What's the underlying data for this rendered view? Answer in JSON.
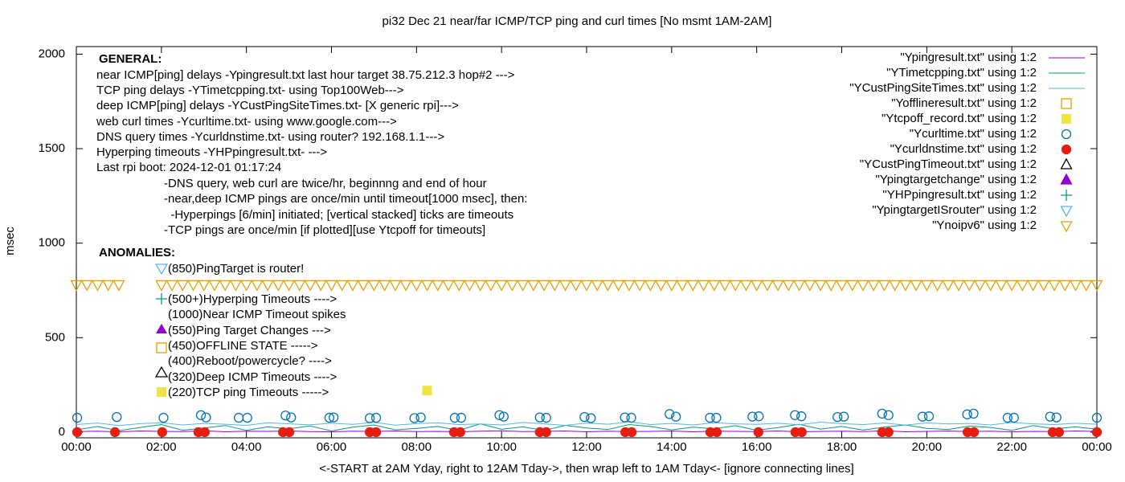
{
  "chart_data": {
    "type": "scatter",
    "title": "pi32 Dec 21  near/far ICMP/TCP ping and curl times [No msmt 1AM-2AM]",
    "xlabel": "<-START at 2AM Yday, right to 12AM Tday->, then wrap left to 1AM Tday<- [ignore connecting lines]",
    "ylabel": "msec",
    "xlim": [
      0,
      24
    ],
    "xticks": [
      {
        "value": 0,
        "label": "00:00"
      },
      {
        "value": 2,
        "label": "02:00"
      },
      {
        "value": 4,
        "label": "04:00"
      },
      {
        "value": 6,
        "label": "06:00"
      },
      {
        "value": 8,
        "label": "08:00"
      },
      {
        "value": 10,
        "label": "10:00"
      },
      {
        "value": 12,
        "label": "12:00"
      },
      {
        "value": 14,
        "label": "14:00"
      },
      {
        "value": 16,
        "label": "16:00"
      },
      {
        "value": 18,
        "label": "18:00"
      },
      {
        "value": 20,
        "label": "20:00"
      },
      {
        "value": 22,
        "label": "22:00"
      },
      {
        "value": 24,
        "label": "00:00"
      }
    ],
    "ylim": [
      -30,
      2040
    ],
    "yticks": [
      0,
      500,
      1000,
      1500,
      2000
    ],
    "grid": false,
    "legend": "top-right",
    "annotations": [
      "GENERAL:",
      "near ICMP[ping] delays -Ypingresult.txt last hour target 38.75.212.3 hop#2 --->",
      "TCP ping delays -YTimetcpping.txt- using Top100Web--->",
      "deep ICMP[ping] delays -YCustPingSiteTimes.txt- [X generic rpi]--->",
      "web curl times -Ycurltime.txt- using www.google.com--->",
      "DNS query times -Ycurldnstime.txt- using router? 192.168.1.1--->",
      "Hyperping timeouts -YHPpingresult.txt- --->",
      "Last rpi boot: 2024-12-01 01:17:24",
      "-DNS query, web curl are twice/hr, beginnng and end of hour",
      "-near,deep ICMP pings are once/min until timeout[1000 msec], then:",
      "  -Hyperpings [6/min] initiated; [vertical stacked] ticks are timeouts",
      "-TCP pings are once/min [if plotted][use Ytcpoff for timeouts]",
      "ANOMALIES:",
      "(850)PingTarget is router!",
      "(500+)Hyperping Timeouts ---->",
      "(1000)Near ICMP Timeout spikes",
      "(550)Ping Target Changes --->",
      "(450)OFFLINE STATE ----->",
      "(400)Reboot/powercycle? ---->",
      "(320)Deep ICMP Timeouts ---->",
      "(220)TCP ping Timeouts ----->"
    ],
    "series": [
      {
        "name": "\"Ypingresult.txt\" using 1:2",
        "color": "#9400d3",
        "marker": "line",
        "x": [
          0,
          0.5,
          1,
          1.5,
          2,
          2.5,
          3,
          3.5,
          4,
          4.5,
          5,
          5.5,
          6,
          6.5,
          7,
          7.5,
          8,
          8.5,
          9,
          9.5,
          10,
          10.5,
          11,
          11.5,
          12,
          12.5,
          13,
          13.5,
          14,
          14.5,
          15,
          15.5,
          16,
          16.5,
          17,
          17.5,
          18,
          18.5,
          19,
          19.5,
          20,
          20.5,
          21,
          21.5,
          22,
          22.5,
          23,
          23.5,
          24
        ],
        "values": [
          3,
          5,
          2,
          6,
          4,
          3,
          7,
          2,
          5,
          4,
          6,
          3,
          2,
          5,
          4,
          6,
          3,
          4,
          2,
          5,
          7,
          3,
          4,
          6,
          2,
          5,
          3,
          4,
          6,
          2,
          5,
          4,
          3,
          6,
          2,
          4,
          5,
          3,
          7,
          2,
          4,
          6,
          3,
          5,
          2,
          4,
          3,
          6,
          4
        ]
      },
      {
        "name": "\"YTimetcpping.txt\" using 1:2",
        "color": "#009e73",
        "marker": "line",
        "x": [
          0,
          0.5,
          1,
          1.5,
          2,
          2.5,
          3,
          3.5,
          4,
          4.5,
          5,
          5.5,
          6,
          6.5,
          7,
          7.5,
          8,
          8.5,
          9,
          9.5,
          10,
          10.5,
          11,
          11.5,
          12,
          12.5,
          13,
          13.5,
          14,
          14.5,
          15,
          15.5,
          16,
          16.5,
          17,
          17.5,
          18,
          18.5,
          19,
          19.5,
          20,
          20.5,
          21,
          21.5,
          22,
          22.5,
          23,
          23.5,
          24
        ],
        "values": [
          12,
          30,
          8,
          25,
          40,
          10,
          22,
          35,
          9,
          28,
          18,
          33,
          6,
          26,
          38,
          12,
          20,
          30,
          10,
          44,
          15,
          28,
          9,
          36,
          22,
          14,
          40,
          30,
          12,
          26,
          18,
          34,
          10,
          24,
          42,
          16,
          30,
          11,
          27,
          38,
          20,
          14,
          32,
          25,
          9,
          35,
          18,
          28,
          15
        ]
      },
      {
        "name": "\"YCustPingSiteTimes.txt\" using 1:2",
        "color": "#56b4e9",
        "marker": "line",
        "x": [
          0,
          0.5,
          1,
          1.5,
          2,
          2.5,
          3,
          3.5,
          4,
          4.5,
          5,
          5.5,
          6,
          6.5,
          7,
          7.5,
          8,
          8.5,
          9,
          9.5,
          10,
          10.5,
          11,
          11.5,
          12,
          12.5,
          13,
          13.5,
          14,
          14.5,
          15,
          15.5,
          16,
          16.5,
          17,
          17.5,
          18,
          18.5,
          19,
          19.5,
          20,
          20.5,
          21,
          21.5,
          22,
          22.5,
          23,
          23.5,
          24
        ],
        "values": [
          40,
          48,
          35,
          45,
          50,
          38,
          46,
          42,
          36,
          50,
          44,
          39,
          47,
          41,
          52,
          37,
          45,
          49,
          40,
          43,
          38,
          51,
          44,
          36,
          48,
          42,
          55,
          40,
          46,
          38,
          50,
          44,
          41,
          47,
          39,
          53,
          45,
          40,
          48,
          37,
          49,
          43,
          46,
          38,
          51,
          44,
          40,
          47,
          42
        ]
      },
      {
        "name": "\"Yofflineresult.txt\" using 1:2",
        "color": "#e69f00",
        "marker": "square-open",
        "x": [],
        "values": []
      },
      {
        "name": "\"Ytcpoff_record.txt\" using 1:2",
        "color": "#f0e442",
        "marker": "square",
        "x": [
          8.25
        ],
        "values": [
          220
        ]
      },
      {
        "name": "\"Ycurltime.txt\" using 1:2",
        "color": "#0072b2",
        "marker": "circle-open",
        "x": [
          0.02,
          0.95,
          2.05,
          2.93,
          3.05,
          3.82,
          4.02,
          4.92,
          5.05,
          5.95,
          6.05,
          6.9,
          7.05,
          7.95,
          8.1,
          8.9,
          9.05,
          9.95,
          10.05,
          10.9,
          11.05,
          11.95,
          12.1,
          12.9,
          13.05,
          13.95,
          14.1,
          14.9,
          15.05,
          15.9,
          16.05,
          16.9,
          17.05,
          17.9,
          18.05,
          18.95,
          19.1,
          19.9,
          20.05,
          20.95,
          21.1,
          21.9,
          22.05,
          22.9,
          23.05,
          24
        ],
        "values": [
          76,
          80,
          76,
          90,
          78,
          76,
          76,
          88,
          78,
          76,
          78,
          74,
          76,
          74,
          78,
          76,
          76,
          90,
          82,
          78,
          76,
          80,
          74,
          78,
          76,
          96,
          82,
          76,
          76,
          82,
          84,
          90,
          84,
          80,
          82,
          98,
          90,
          82,
          84,
          94,
          98,
          76,
          76,
          82,
          78,
          76
        ]
      },
      {
        "name": "\"Ycurldnstime.txt\" using 1:2",
        "color": "#e51e10",
        "marker": "circle",
        "x": [
          0.02,
          0.91,
          2.02,
          2.87,
          3.02,
          4.86,
          5.01,
          6.9,
          7.05,
          8.88,
          9.03,
          10.9,
          11.05,
          12.91,
          13.06,
          14.91,
          15.06,
          16.04,
          16.91,
          17.06,
          18.95,
          19.1,
          20.96,
          21.11,
          22.96,
          23.11,
          24
        ],
        "values": [
          0,
          0,
          0,
          0,
          0,
          0,
          0,
          0,
          0,
          0,
          0,
          0,
          0,
          0,
          0,
          0,
          0,
          0,
          0,
          0,
          0,
          0,
          0,
          0,
          0,
          0,
          0
        ]
      },
      {
        "name": "\"YCustPingTimeout.txt\" using 1:2",
        "color": "#000000",
        "marker": "triangle-open",
        "x": [],
        "values": []
      },
      {
        "name": "\"Ypingtargetchange\" using 1:2",
        "color": "#9400d3",
        "marker": "triangle",
        "x": [],
        "values": []
      },
      {
        "name": "\"YHPpingresult.txt\" using 1:2",
        "color": "#009e73",
        "marker": "plus",
        "x": [],
        "values": []
      },
      {
        "name": "\"YpingtargetISrouter\" using 1:2",
        "color": "#56b4e9",
        "marker": "triangle-down-open",
        "x": [],
        "values": []
      },
      {
        "name": "\"Ynoipv6\" using 1:2",
        "color": "#e69f00",
        "marker": "triangle-down-open",
        "x": [
          0,
          0.25,
          0.5,
          0.75,
          1,
          2,
          2.25,
          2.5,
          2.75,
          3,
          3.25,
          3.5,
          3.75,
          4,
          4.25,
          4.5,
          4.75,
          5,
          5.25,
          5.5,
          5.75,
          6,
          6.25,
          6.5,
          6.75,
          7,
          7.25,
          7.5,
          7.75,
          8,
          8.25,
          8.5,
          8.75,
          9,
          9.25,
          9.5,
          9.75,
          10,
          10.25,
          10.5,
          10.75,
          11,
          11.25,
          11.5,
          11.75,
          12,
          12.25,
          12.5,
          12.75,
          13,
          13.25,
          13.5,
          13.75,
          14,
          14.25,
          14.5,
          14.75,
          15,
          15.25,
          15.5,
          15.75,
          16,
          16.25,
          16.5,
          16.75,
          17,
          17.25,
          17.5,
          17.75,
          18,
          18.25,
          18.5,
          18.75,
          19,
          19.25,
          19.5,
          19.75,
          20,
          20.25,
          20.5,
          20.75,
          21,
          21.25,
          21.5,
          21.75,
          22,
          22.25,
          22.5,
          22.75,
          23,
          23.25,
          23.5,
          23.75,
          24
        ],
        "values": [
          780,
          780,
          780,
          780,
          780,
          780,
          780,
          780,
          780,
          780,
          780,
          780,
          780,
          780,
          780,
          780,
          780,
          780,
          780,
          780,
          780,
          780,
          780,
          780,
          780,
          780,
          780,
          780,
          780,
          780,
          780,
          780,
          780,
          780,
          780,
          780,
          780,
          780,
          780,
          780,
          780,
          780,
          780,
          780,
          780,
          780,
          780,
          780,
          780,
          780,
          780,
          780,
          780,
          780,
          780,
          780,
          780,
          780,
          780,
          780,
          780,
          780,
          780,
          780,
          780,
          780,
          780,
          780,
          780,
          780,
          780,
          780,
          780,
          780,
          780,
          780,
          780,
          780,
          780,
          780,
          780,
          780,
          780,
          780,
          780,
          780,
          780,
          780,
          780,
          780,
          780,
          780,
          780,
          780
        ]
      }
    ]
  }
}
